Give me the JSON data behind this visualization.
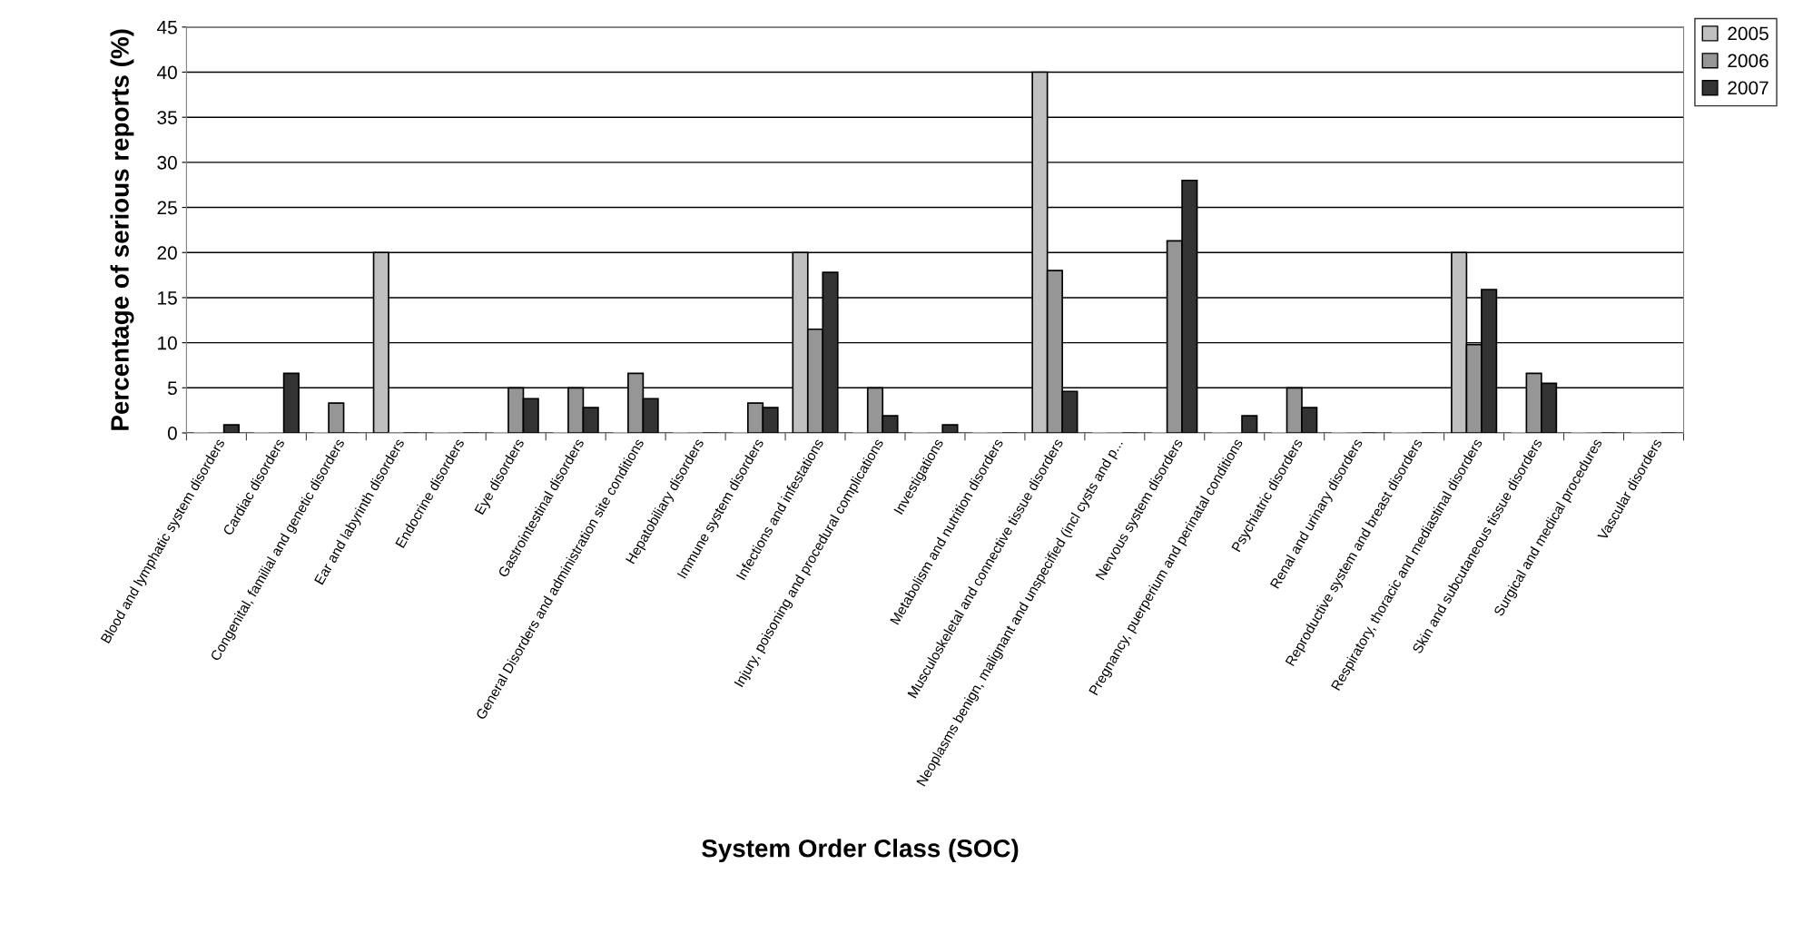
{
  "chart_data": {
    "type": "bar",
    "xlabel": "System Order Class (SOC)",
    "ylabel": "Percentage of serious reports (%)",
    "categories": [
      "Blood and lymphatic system disorders",
      "Cardiac disorders",
      "Congenital, familial and genetic disorders",
      "Ear and labyrinth disorders",
      "Endocrine disorders",
      "Eye disorders",
      "Gastrointestinal disorders",
      "General Disorders and administration site conditions",
      "Hepatobiliary disorders",
      "Immune system disorders",
      "Infections and infestations",
      "Injury, poisoning and procedural complications",
      "Investigations",
      "Metabolism and nutrition disorders",
      "Musculoskeletal and connective tissue disorders",
      "Neoplasms benign, malignant and unspecified (incl cysts and p...",
      "Nervous system disorders",
      "Pregnancy, puerperium and perinatal conditions",
      "Psychiatric disorders",
      "Renal and urinary disorders",
      "Reproductive system and breast disorders",
      "Respiratory, thoracic and mediastinal disorders",
      "Skin and subcutaneous tissue disorders",
      "Surgical and medical procedures",
      "Vascular disorders"
    ],
    "series": [
      {
        "name": "2005",
        "color": "#c0c0c0",
        "values": [
          0,
          0,
          0,
          20,
          0,
          0,
          0,
          0,
          0,
          0,
          20,
          0,
          0,
          0,
          40,
          0,
          0,
          0,
          0,
          0,
          0,
          20,
          0,
          0,
          0
        ]
      },
      {
        "name": "2006",
        "color": "#969696",
        "values": [
          0,
          0,
          3.3,
          0,
          0,
          5,
          5,
          6.6,
          0,
          3.3,
          11.5,
          5,
          0,
          0,
          18,
          0,
          21.3,
          0,
          5,
          0,
          0,
          9.8,
          6.6,
          0,
          0
        ]
      },
      {
        "name": "2007",
        "color": "#333333",
        "values": [
          0.9,
          6.6,
          0,
          0,
          0,
          3.8,
          2.8,
          3.8,
          0,
          2.8,
          17.8,
          1.9,
          0.9,
          0,
          4.6,
          0,
          28,
          1.9,
          2.8,
          0,
          0,
          15.9,
          5.5,
          0,
          0
        ]
      }
    ],
    "ylim": [
      0,
      45
    ],
    "yticks": [
      0,
      5,
      10,
      15,
      20,
      25,
      30,
      35,
      40,
      45
    ],
    "grid": "y",
    "legend": "top right"
  }
}
